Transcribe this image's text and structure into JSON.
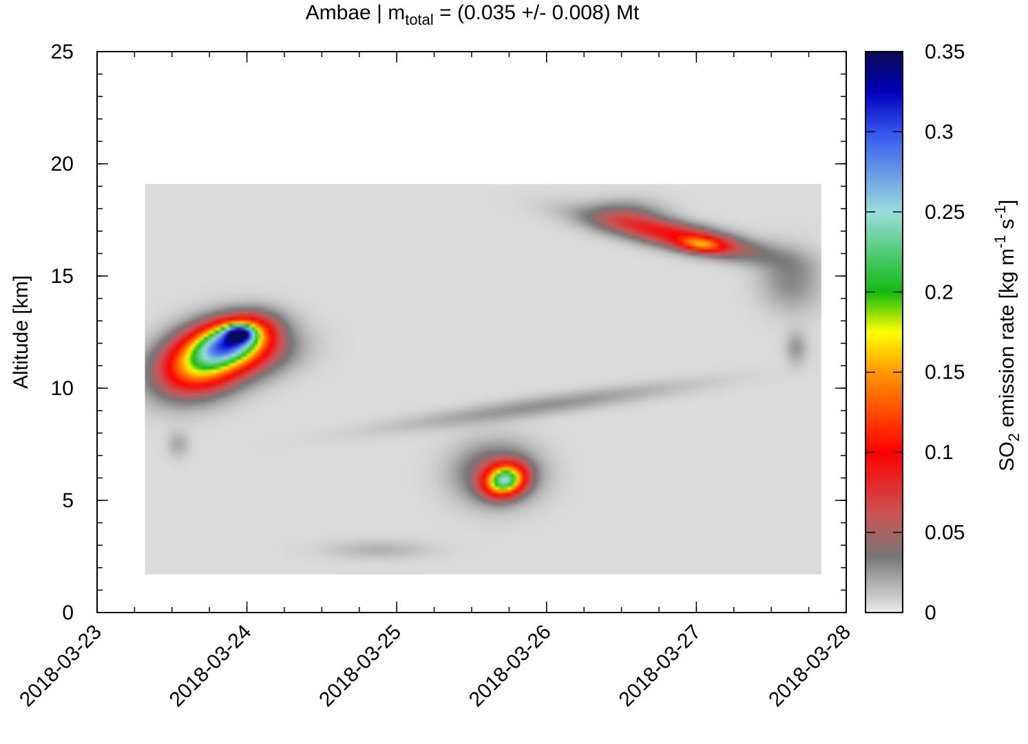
{
  "chart_data": {
    "type": "heatmap",
    "title": {
      "prefix": "Ambae | m",
      "subscript": "total",
      "suffix": " = (0.035 +/- 0.008) Mt"
    },
    "ylabel": "Altitude [km]",
    "xlabel": "",
    "xlim": [
      "2018-03-23",
      "2018-03-28"
    ],
    "ylim": [
      0,
      25
    ],
    "x_ticks": [
      "2018-03-23",
      "2018-03-24",
      "2018-03-25",
      "2018-03-26",
      "2018-03-27",
      "2018-03-28"
    ],
    "y_ticks": [
      "0",
      "5",
      "10",
      "15",
      "20",
      "25"
    ],
    "data_extent": {
      "x": [
        "2018-03-23 07:40",
        "2018-03-27 20:00"
      ],
      "y": [
        1.7,
        19.1
      ]
    },
    "background_value": 0.005,
    "colorbar": {
      "label_parts": [
        "SO",
        "2",
        " emission rate [kg m",
        "-1",
        " s",
        "-1",
        "]"
      ],
      "range": [
        0,
        0.35
      ],
      "ticks": [
        "0",
        "0.05",
        "0.1",
        "0.15",
        "0.2",
        "0.25",
        "0.3",
        "0.35"
      ],
      "stops": [
        {
          "value": 0.0,
          "color": "#ececec"
        },
        {
          "value": 0.035,
          "color": "#777777"
        },
        {
          "value": 0.06,
          "color": "#c85858"
        },
        {
          "value": 0.1,
          "color": "#ff0000"
        },
        {
          "value": 0.15,
          "color": "#ff9900"
        },
        {
          "value": 0.175,
          "color": "#ffff00"
        },
        {
          "value": 0.2,
          "color": "#11bb11"
        },
        {
          "value": 0.25,
          "color": "#99dddd"
        },
        {
          "value": 0.3,
          "color": "#3355ee"
        },
        {
          "value": 0.325,
          "color": "#0000bb"
        },
        {
          "value": 0.35,
          "color": "#0a0a55"
        }
      ]
    },
    "emission_features": [
      {
        "name": "plume-1",
        "x": "2018-03-23 17:00",
        "y": 11.2,
        "sx_hours": 5,
        "sy_km": 0.9,
        "peak": 0.17,
        "angle": 20
      },
      {
        "name": "plume-2",
        "x": "2018-03-23 22:00",
        "y": 12.2,
        "sx_hours": 4,
        "sy_km": 0.6,
        "peak": 0.2,
        "angle": 15
      },
      {
        "name": "plume-3",
        "x": "2018-03-23 22:50",
        "y": 12.45,
        "sx_hours": 1.5,
        "sy_km": 0.25,
        "peak": 0.14,
        "angle": 0
      },
      {
        "name": "plume-4",
        "x": "2018-03-24 01:00",
        "y": 11.5,
        "sx_hours": 5,
        "sy_km": 0.7,
        "peak": 0.05,
        "angle": 10
      },
      {
        "name": "plume-5",
        "x": "2018-03-25 17:20",
        "y": 5.9,
        "sx_hours": 2.2,
        "sy_km": 0.45,
        "peak": 0.2,
        "angle": 15
      },
      {
        "name": "plume-6",
        "x": "2018-03-25 16:00",
        "y": 6.2,
        "sx_hours": 4.5,
        "sy_km": 0.9,
        "peak": 0.05,
        "angle": 0
      },
      {
        "name": "plume-7",
        "x": "2018-03-26 21:00",
        "y": 16.8,
        "sx_hours": 9,
        "sy_km": 0.4,
        "peak": 0.09,
        "angle": -12
      },
      {
        "name": "plume-8",
        "x": "2018-03-27 00:50",
        "y": 16.4,
        "sx_hours": 2.5,
        "sy_km": 0.22,
        "peak": 0.08,
        "angle": -5
      },
      {
        "name": "plume-9",
        "x": "2018-03-26 13:00",
        "y": 17.8,
        "sx_hours": 4,
        "sy_km": 0.45,
        "peak": 0.025,
        "angle": 0
      },
      {
        "name": "plume-10",
        "x": "2018-03-27 15:00",
        "y": 14.8,
        "sx_hours": 3.5,
        "sy_km": 0.9,
        "peak": 0.025,
        "angle": -45
      },
      {
        "name": "plume-11",
        "x": "2018-03-27 16:00",
        "y": 11.8,
        "sx_hours": 1.2,
        "sy_km": 0.5,
        "peak": 0.02,
        "angle": 0
      },
      {
        "name": "plume-12",
        "x": "2018-03-25 23:00",
        "y": 9.2,
        "sx_hours": 16,
        "sy_km": 0.3,
        "peak": 0.022,
        "angle": 8
      },
      {
        "name": "plume-13",
        "x": "2018-03-23 13:00",
        "y": 7.5,
        "sx_hours": 1.2,
        "sy_km": 0.4,
        "peak": 0.015,
        "angle": 0
      },
      {
        "name": "plume-14",
        "x": "2018-03-24 21:00",
        "y": 2.8,
        "sx_hours": 6,
        "sy_km": 0.3,
        "peak": 0.012,
        "angle": 0
      }
    ]
  }
}
